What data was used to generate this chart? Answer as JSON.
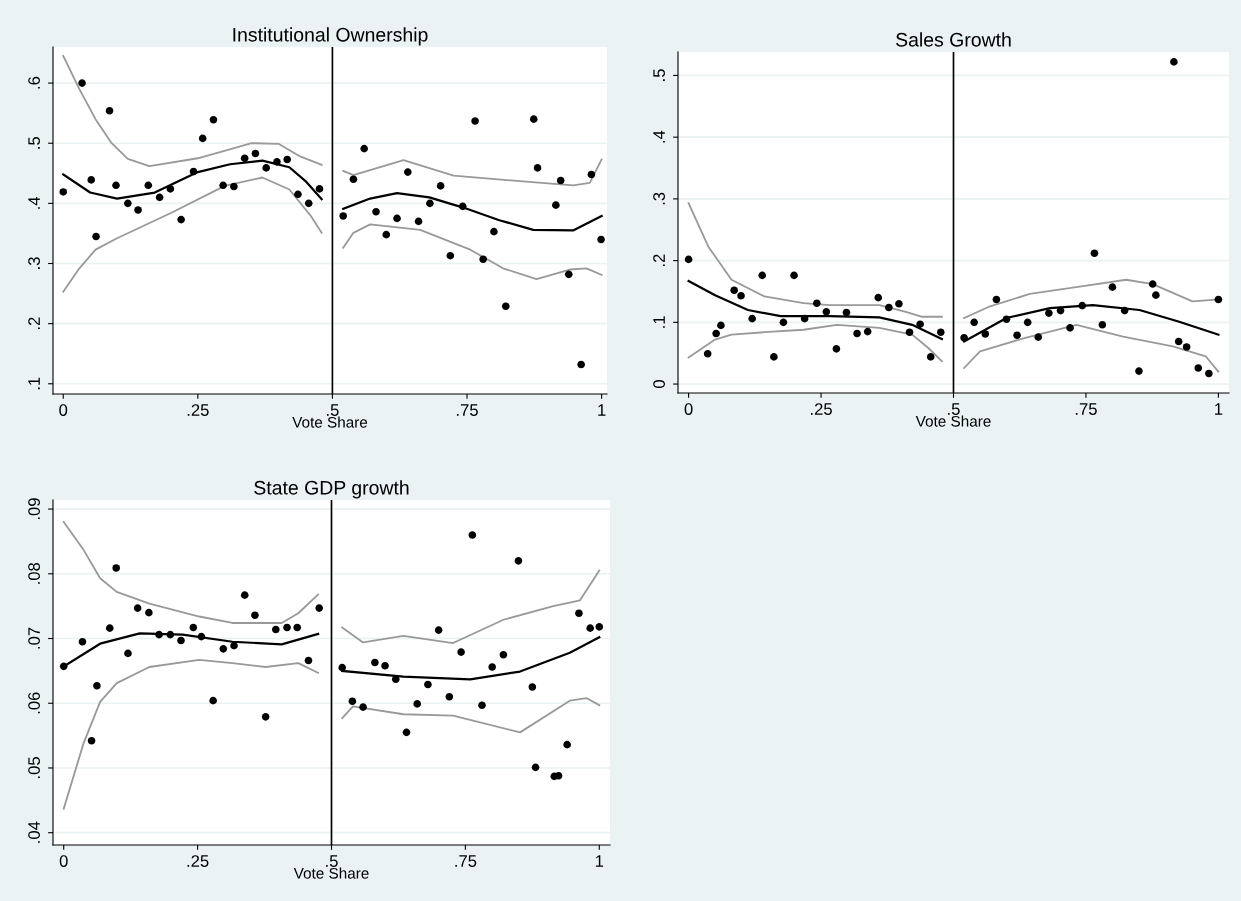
{
  "chart_data": [
    {
      "type": "scatter",
      "title": "Institutional Ownership",
      "xlabel": "Vote Share",
      "grid": "y",
      "xlim": [
        -0.019,
        1.01
      ],
      "ylim": [
        0.083,
        0.66
      ],
      "xticks": [
        {
          "value": 0,
          "label": "0"
        },
        {
          "value": 0.25,
          "label": ".25"
        },
        {
          "value": 0.5,
          "label": ".5"
        },
        {
          "value": 0.75,
          "label": ".75"
        },
        {
          "value": 1,
          "label": "1"
        }
      ],
      "yticks": [
        {
          "value": 0.1,
          "label": ".1"
        },
        {
          "value": 0.2,
          "label": ".2"
        },
        {
          "value": 0.3,
          "label": ".3"
        },
        {
          "value": 0.4,
          "label": ".4"
        },
        {
          "value": 0.5,
          "label": ".5"
        },
        {
          "value": 0.6,
          "label": ".6"
        }
      ],
      "ref_lines": [
        {
          "axis": "x",
          "value": 0.5,
          "color": "#000000"
        }
      ],
      "series": [
        {
          "marker": "circle",
          "color": "#000000",
          "x": [
            0,
            0.035,
            0.052,
            0.061,
            0.086,
            0.098,
            0.12,
            0.139,
            0.158,
            0.179,
            0.199,
            0.219,
            0.242,
            0.259,
            0.279,
            0.297,
            0.317,
            0.337,
            0.357,
            0.377,
            0.397,
            0.416,
            0.436,
            0.456,
            0.476,
            0.52,
            0.539,
            0.559,
            0.581,
            0.6,
            0.62,
            0.64,
            0.66,
            0.681,
            0.701,
            0.719,
            0.742,
            0.765,
            0.78,
            0.8,
            0.822,
            0.874,
            0.881,
            0.915,
            0.924,
            0.939,
            0.962,
            0.981,
            0.999
          ],
          "values": [
            0.419,
            0.6,
            0.439,
            0.345,
            0.554,
            0.43,
            0.4,
            0.389,
            0.43,
            0.41,
            0.424,
            0.373,
            0.453,
            0.508,
            0.539,
            0.43,
            0.428,
            0.475,
            0.483,
            0.459,
            0.469,
            0.473,
            0.415,
            0.4,
            0.424,
            0.379,
            0.44,
            0.491,
            0.386,
            0.348,
            0.375,
            0.452,
            0.37,
            0.4,
            0.429,
            0.313,
            0.395,
            0.537,
            0.307,
            0.353,
            0.229,
            0.54,
            0.459,
            0.397,
            0.438,
            0.282,
            0.132,
            0.448,
            0.34
          ]
        },
        {
          "type": "line",
          "color": "#000000",
          "x": [
            0,
            0.05,
            0.1,
            0.17,
            0.25,
            0.31,
            0.37,
            0.42,
            0.45,
            0.48
          ],
          "values": [
            0.448,
            0.418,
            0.408,
            0.418,
            0.452,
            0.465,
            0.471,
            0.46,
            0.437,
            0.407
          ]
        },
        {
          "type": "line",
          "color": "#999999",
          "x": [
            0,
            0.03,
            0.06,
            0.09,
            0.12,
            0.16,
            0.25,
            0.35,
            0.4,
            0.44,
            0.48
          ],
          "values": [
            0.645,
            0.59,
            0.54,
            0.5,
            0.474,
            0.462,
            0.475,
            0.5,
            0.499,
            0.478,
            0.464
          ]
        },
        {
          "type": "line",
          "color": "#999999",
          "x": [
            0,
            0.03,
            0.06,
            0.1,
            0.2,
            0.3,
            0.37,
            0.42,
            0.46,
            0.48
          ],
          "values": [
            0.253,
            0.292,
            0.323,
            0.342,
            0.384,
            0.429,
            0.443,
            0.423,
            0.379,
            0.351
          ]
        },
        {
          "type": "line",
          "color": "#000000",
          "x": [
            0.52,
            0.57,
            0.62,
            0.68,
            0.743,
            0.81,
            0.873,
            0.947,
            1.0
          ],
          "values": [
            0.391,
            0.408,
            0.417,
            0.41,
            0.393,
            0.372,
            0.356,
            0.355,
            0.379
          ]
        },
        {
          "type": "line",
          "color": "#999999",
          "x": [
            0.52,
            0.539,
            0.632,
            0.725,
            0.848,
            0.947,
            0.978,
            1.0
          ],
          "values": [
            0.454,
            0.447,
            0.472,
            0.446,
            0.437,
            0.43,
            0.434,
            0.473
          ]
        },
        {
          "type": "line",
          "color": "#999999",
          "x": [
            0.52,
            0.539,
            0.57,
            0.663,
            0.756,
            0.817,
            0.879,
            0.941,
            0.972,
            1.0
          ],
          "values": [
            0.326,
            0.351,
            0.365,
            0.356,
            0.323,
            0.292,
            0.274,
            0.29,
            0.292,
            0.281
          ]
        }
      ]
    },
    {
      "type": "scatter",
      "title": "Sales Growth",
      "xlabel": "Vote Share",
      "grid": "y",
      "xlim": [
        -0.02,
        1.02
      ],
      "ylim": [
        -0.0145,
        0.538
      ],
      "xticks": [
        {
          "value": 0,
          "label": "0"
        },
        {
          "value": 0.25,
          "label": ".25"
        },
        {
          "value": 0.5,
          "label": ".5"
        },
        {
          "value": 0.75,
          "label": ".75"
        },
        {
          "value": 1,
          "label": "1"
        }
      ],
      "yticks": [
        {
          "value": 0,
          "label": "0"
        },
        {
          "value": 0.1,
          "label": ".1"
        },
        {
          "value": 0.2,
          "label": ".2"
        },
        {
          "value": 0.3,
          "label": ".3"
        },
        {
          "value": 0.4,
          "label": ".4"
        },
        {
          "value": 0.5,
          "label": ".5"
        }
      ],
      "ref_lines": [
        {
          "axis": "x",
          "value": 0.5,
          "color": "#000000"
        }
      ],
      "series": [
        {
          "marker": "circle",
          "color": "#000000",
          "x": [
            0,
            0.036,
            0.052,
            0.061,
            0.086,
            0.099,
            0.12,
            0.139,
            0.161,
            0.179,
            0.199,
            0.219,
            0.242,
            0.26,
            0.279,
            0.298,
            0.318,
            0.338,
            0.358,
            0.378,
            0.397,
            0.417,
            0.437,
            0.457,
            0.476,
            0.52,
            0.539,
            0.56,
            0.581,
            0.6,
            0.62,
            0.64,
            0.66,
            0.68,
            0.702,
            0.72,
            0.743,
            0.766,
            0.781,
            0.8,
            0.823,
            0.85,
            0.876,
            0.882,
            0.916,
            0.925,
            0.94,
            0.962,
            0.982,
            1.0
          ],
          "values": [
            0.202,
            0.049,
            0.082,
            0.095,
            0.152,
            0.143,
            0.106,
            0.176,
            0.044,
            0.1,
            0.176,
            0.106,
            0.131,
            0.117,
            0.057,
            0.116,
            0.082,
            0.085,
            0.14,
            0.124,
            0.13,
            0.084,
            0.097,
            0.044,
            0.084,
            0.075,
            0.1,
            0.081,
            0.137,
            0.105,
            0.079,
            0.1,
            0.076,
            0.115,
            0.119,
            0.091,
            0.127,
            0.212,
            0.096,
            0.157,
            0.119,
            0.021,
            0.162,
            0.144,
            0.522,
            0.069,
            0.06,
            0.026,
            0.017,
            0.137
          ]
        },
        {
          "type": "line",
          "color": "#000000",
          "x": [
            0,
            0.05,
            0.112,
            0.174,
            0.267,
            0.36,
            0.422,
            0.478
          ],
          "values": [
            0.167,
            0.144,
            0.12,
            0.11,
            0.11,
            0.108,
            0.096,
            0.073
          ]
        },
        {
          "type": "line",
          "color": "#999999",
          "x": [
            0,
            0.037,
            0.081,
            0.143,
            0.217,
            0.267,
            0.36,
            0.41,
            0.441,
            0.478
          ],
          "values": [
            0.293,
            0.223,
            0.169,
            0.142,
            0.131,
            0.128,
            0.128,
            0.117,
            0.109,
            0.109
          ]
        },
        {
          "type": "line",
          "color": "#999999",
          "x": [
            0,
            0.05,
            0.081,
            0.143,
            0.217,
            0.28,
            0.36,
            0.422,
            0.453,
            0.478
          ],
          "values": [
            0.043,
            0.072,
            0.08,
            0.084,
            0.088,
            0.096,
            0.091,
            0.08,
            0.058,
            0.037
          ]
        },
        {
          "type": "line",
          "color": "#000000",
          "x": [
            0.52,
            0.6,
            0.682,
            0.763,
            0.851,
            0.926,
            1.0
          ],
          "values": [
            0.069,
            0.107,
            0.123,
            0.128,
            0.12,
            0.101,
            0.08
          ]
        },
        {
          "type": "line",
          "color": "#999999",
          "x": [
            0.52,
            0.569,
            0.644,
            0.738,
            0.826,
            0.876,
            0.951,
            1.0
          ],
          "values": [
            0.107,
            0.126,
            0.146,
            0.158,
            0.169,
            0.162,
            0.134,
            0.137
          ]
        },
        {
          "type": "line",
          "color": "#999999",
          "x": [
            0.52,
            0.55,
            0.632,
            0.732,
            0.82,
            0.914,
            0.976,
            1.0
          ],
          "values": [
            0.026,
            0.053,
            0.074,
            0.096,
            0.077,
            0.061,
            0.045,
            0.02
          ]
        }
      ]
    },
    {
      "type": "scatter",
      "title": "State GDP growth",
      "xlabel": "Vote Share",
      "grid": "y",
      "xlim": [
        -0.02,
        1.02
      ],
      "ylim": [
        0.0381,
        0.0914
      ],
      "xticks": [
        {
          "value": 0,
          "label": "0"
        },
        {
          "value": 0.25,
          "label": ".25"
        },
        {
          "value": 0.5,
          "label": ".5"
        },
        {
          "value": 0.75,
          "label": ".75"
        },
        {
          "value": 1,
          "label": "1"
        }
      ],
      "yticks": [
        {
          "value": 0.04,
          "label": ".04"
        },
        {
          "value": 0.05,
          "label": ".05"
        },
        {
          "value": 0.06,
          "label": ".06"
        },
        {
          "value": 0.07,
          "label": ".07"
        },
        {
          "value": 0.08,
          "label": ".08"
        },
        {
          "value": 0.09,
          "label": ".09"
        }
      ],
      "ref_lines": [
        {
          "axis": "x",
          "value": 0.5,
          "color": "#000000"
        }
      ],
      "series": [
        {
          "marker": "circle",
          "color": "#000000",
          "x": [
            0,
            0.035,
            0.052,
            0.062,
            0.086,
            0.098,
            0.12,
            0.138,
            0.159,
            0.178,
            0.199,
            0.219,
            0.242,
            0.257,
            0.279,
            0.298,
            0.318,
            0.338,
            0.357,
            0.377,
            0.396,
            0.417,
            0.436,
            0.457,
            0.477,
            0.52,
            0.539,
            0.559,
            0.581,
            0.6,
            0.62,
            0.64,
            0.66,
            0.68,
            0.7,
            0.72,
            0.742,
            0.763,
            0.781,
            0.8,
            0.821,
            0.849,
            0.875,
            0.881,
            0.916,
            0.924,
            0.94,
            0.962,
            0.983,
            1.0
          ],
          "values": [
            0.0657,
            0.0695,
            0.0542,
            0.0627,
            0.0716,
            0.0809,
            0.0677,
            0.0747,
            0.074,
            0.0706,
            0.0706,
            0.0697,
            0.0717,
            0.0703,
            0.0604,
            0.0684,
            0.0689,
            0.0767,
            0.0736,
            0.0579,
            0.0714,
            0.0717,
            0.0717,
            0.0666,
            0.0747,
            0.0655,
            0.0603,
            0.0594,
            0.0663,
            0.0658,
            0.0637,
            0.0555,
            0.0599,
            0.0629,
            0.0713,
            0.061,
            0.0679,
            0.086,
            0.0597,
            0.0656,
            0.0675,
            0.082,
            0.0625,
            0.0501,
            0.0487,
            0.0488,
            0.0536,
            0.0739,
            0.0716,
            0.0718
          ]
        },
        {
          "type": "line",
          "color": "#000000",
          "x": [
            0,
            0.068,
            0.142,
            0.222,
            0.315,
            0.407,
            0.475
          ],
          "values": [
            0.0657,
            0.0692,
            0.0708,
            0.0706,
            0.0695,
            0.0691,
            0.0707
          ]
        },
        {
          "type": "line",
          "color": "#999999",
          "x": [
            0,
            0.037,
            0.068,
            0.099,
            0.16,
            0.253,
            0.315,
            0.407,
            0.438,
            0.475
          ],
          "values": [
            0.088,
            0.0837,
            0.0793,
            0.0772,
            0.0754,
            0.0734,
            0.0724,
            0.0724,
            0.0739,
            0.0768
          ]
        },
        {
          "type": "line",
          "color": "#999999",
          "x": [
            0,
            0.037,
            0.068,
            0.099,
            0.16,
            0.253,
            0.315,
            0.377,
            0.438,
            0.475
          ],
          "values": [
            0.0437,
            0.0538,
            0.0602,
            0.0631,
            0.0656,
            0.0667,
            0.0662,
            0.0656,
            0.0662,
            0.0647
          ]
        },
        {
          "type": "line",
          "color": "#000000",
          "x": [
            0.52,
            0.634,
            0.759,
            0.852,
            0.945,
            1.0
          ],
          "values": [
            0.065,
            0.0641,
            0.0637,
            0.0649,
            0.0678,
            0.0702
          ]
        },
        {
          "type": "line",
          "color": "#999999",
          "x": [
            0.52,
            0.559,
            0.634,
            0.727,
            0.821,
            0.914,
            0.964,
            1.0
          ],
          "values": [
            0.0717,
            0.0694,
            0.0704,
            0.0693,
            0.0729,
            0.075,
            0.0759,
            0.0805
          ]
        },
        {
          "type": "line",
          "color": "#999999",
          "x": [
            0.52,
            0.54,
            0.634,
            0.727,
            0.852,
            0.945,
            0.976,
            1.0
          ],
          "values": [
            0.0577,
            0.0595,
            0.0583,
            0.0581,
            0.0555,
            0.0604,
            0.0608,
            0.0597
          ]
        }
      ]
    }
  ]
}
